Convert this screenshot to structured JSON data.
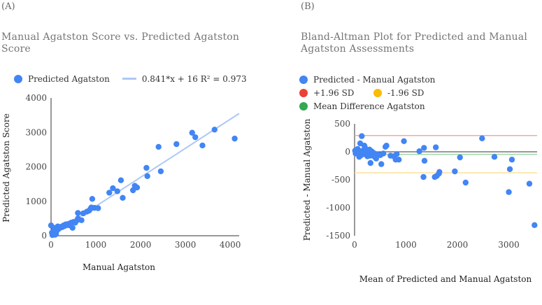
{
  "chart_data": [
    {
      "type": "scatter",
      "panel_label": "(A)",
      "title": "Manual Agatston Score vs. Predicted Agatston Score",
      "xlabel": "Manual Agatston",
      "ylabel": "Predicted Agatston Score",
      "xlim": [
        0,
        4200
      ],
      "ylim": [
        0,
        4000
      ],
      "xticks": [
        0,
        1000,
        2000,
        3000,
        4000
      ],
      "yticks": [
        0,
        1000,
        2000,
        3000,
        4000
      ],
      "legend": [
        {
          "label": "Predicted Agatston",
          "color": "#4285f4",
          "kind": "dot"
        },
        {
          "label": "0.841*x + 16 R² = 0.973",
          "color": "#aec8f5",
          "kind": "line"
        }
      ],
      "trendline": {
        "slope": 0.841,
        "intercept": 16
      },
      "points": [
        [
          0,
          300
        ],
        [
          20,
          90
        ],
        [
          30,
          20
        ],
        [
          50,
          60
        ],
        [
          60,
          150
        ],
        [
          70,
          230
        ],
        [
          80,
          60
        ],
        [
          90,
          30
        ],
        [
          100,
          120
        ],
        [
          110,
          50
        ],
        [
          130,
          150
        ],
        [
          150,
          270
        ],
        [
          170,
          200
        ],
        [
          200,
          230
        ],
        [
          220,
          260
        ],
        [
          250,
          250
        ],
        [
          280,
          300
        ],
        [
          300,
          280
        ],
        [
          330,
          330
        ],
        [
          360,
          310
        ],
        [
          400,
          350
        ],
        [
          420,
          300
        ],
        [
          450,
          380
        ],
        [
          480,
          230
        ],
        [
          500,
          400
        ],
        [
          540,
          380
        ],
        [
          580,
          450
        ],
        [
          600,
          500
        ],
        [
          600,
          660
        ],
        [
          680,
          450
        ],
        [
          720,
          650
        ],
        [
          800,
          700
        ],
        [
          850,
          730
        ],
        [
          880,
          780
        ],
        [
          900,
          820
        ],
        [
          920,
          1070
        ],
        [
          970,
          810
        ],
        [
          1050,
          800
        ],
        [
          1300,
          1250
        ],
        [
          1380,
          1380
        ],
        [
          1480,
          1290
        ],
        [
          1560,
          1610
        ],
        [
          1600,
          1100
        ],
        [
          1830,
          1320
        ],
        [
          1870,
          1450
        ],
        [
          1920,
          1400
        ],
        [
          2130,
          1970
        ],
        [
          2150,
          1730
        ],
        [
          2400,
          2580
        ],
        [
          2450,
          1870
        ],
        [
          2800,
          2660
        ],
        [
          3150,
          2990
        ],
        [
          3220,
          2860
        ],
        [
          3380,
          2620
        ],
        [
          3650,
          3080
        ],
        [
          4100,
          2820
        ]
      ]
    },
    {
      "type": "scatter",
      "panel_label": "(B)",
      "title": "Bland-Altman Plot for Predicted and Manual Agatston Assessments",
      "xlabel": "Mean of Predicted and Manual Agatston",
      "ylabel": "Predicted - Manual Agatston",
      "xlim": [
        0,
        3550
      ],
      "ylim": [
        -1500,
        500
      ],
      "xticks": [
        0,
        1000,
        2000,
        3000
      ],
      "yticks": [
        500,
        0,
        -500,
        -1000,
        -1500
      ],
      "legend": [
        {
          "label": "Predicted - Manual Agatston",
          "color": "#4285f4"
        },
        {
          "label": "+1.96 SD",
          "color": "#ea4335"
        },
        {
          "label": "-1.96 SD",
          "color": "#fbbc04"
        },
        {
          "label": "Mean Difference Agatston",
          "color": "#34a853"
        }
      ],
      "hlines": [
        {
          "label": "+1.96 SD",
          "y": 290,
          "color": "#f4a9a3"
        },
        {
          "label": "Mean Difference Agatston",
          "y": -45,
          "color": "#9fd7a8"
        },
        {
          "label": "-1.96 SD",
          "y": -375,
          "color": "#fde29a"
        }
      ],
      "points": [
        [
          10,
          20
        ],
        [
          20,
          -30
        ],
        [
          40,
          30
        ],
        [
          60,
          50
        ],
        [
          80,
          -50
        ],
        [
          90,
          -90
        ],
        [
          100,
          10
        ],
        [
          110,
          150
        ],
        [
          130,
          -60
        ],
        [
          140,
          280
        ],
        [
          160,
          20
        ],
        [
          180,
          -30
        ],
        [
          190,
          110
        ],
        [
          200,
          80
        ],
        [
          220,
          -50
        ],
        [
          240,
          30
        ],
        [
          250,
          -80
        ],
        [
          270,
          -10
        ],
        [
          290,
          40
        ],
        [
          300,
          -70
        ],
        [
          310,
          -200
        ],
        [
          330,
          10
        ],
        [
          350,
          -30
        ],
        [
          370,
          -20
        ],
        [
          390,
          -90
        ],
        [
          420,
          -120
        ],
        [
          450,
          -50
        ],
        [
          500,
          -60
        ],
        [
          520,
          -220
        ],
        [
          560,
          -30
        ],
        [
          600,
          90
        ],
        [
          620,
          110
        ],
        [
          700,
          -70
        ],
        [
          760,
          -80
        ],
        [
          800,
          -140
        ],
        [
          820,
          -40
        ],
        [
          860,
          -140
        ],
        [
          960,
          190
        ],
        [
          1260,
          10
        ],
        [
          1340,
          -450
        ],
        [
          1350,
          70
        ],
        [
          1360,
          -160
        ],
        [
          1560,
          -450
        ],
        [
          1580,
          80
        ],
        [
          1600,
          -430
        ],
        [
          1640,
          -390
        ],
        [
          1650,
          -360
        ],
        [
          1950,
          -350
        ],
        [
          2050,
          -100
        ],
        [
          2160,
          -550
        ],
        [
          2480,
          240
        ],
        [
          2720,
          -90
        ],
        [
          3000,
          -720
        ],
        [
          3020,
          -310
        ],
        [
          3060,
          -140
        ],
        [
          3400,
          -570
        ],
        [
          3500,
          -1310
        ]
      ]
    }
  ]
}
